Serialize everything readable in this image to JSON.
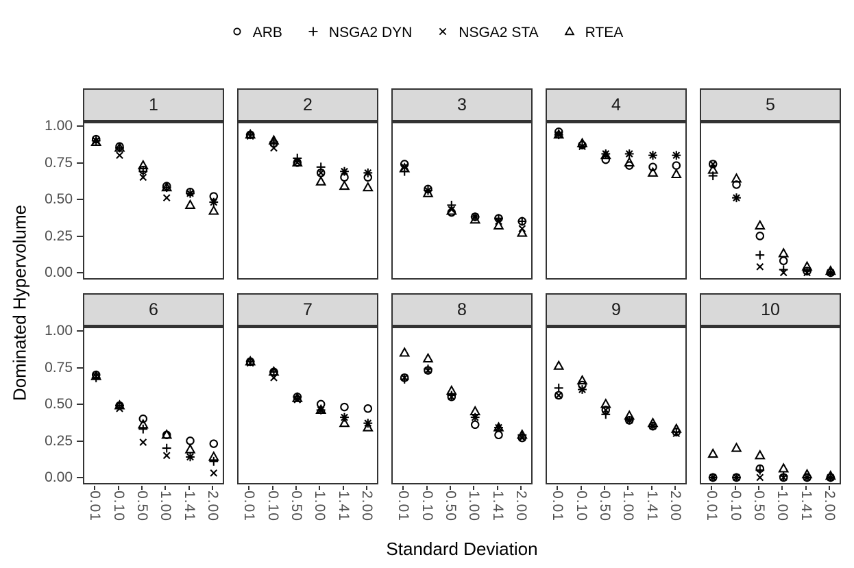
{
  "legend": {
    "items": [
      {
        "label": "ARB",
        "marker": "circle-icon"
      },
      {
        "label": "NSGA2 DYN",
        "marker": "plus-icon"
      },
      {
        "label": "NSGA2 STA",
        "marker": "x-icon"
      },
      {
        "label": "RTEA",
        "marker": "triangle-icon"
      }
    ]
  },
  "colors": {
    "marker": "#000000",
    "panel_border": "#333333",
    "strip_background": "#d9d9d9",
    "tick_label": "#4d4d4d",
    "axis_title": "#000000"
  },
  "chart_data": {
    "type": "scatter",
    "title": "",
    "xlabel": "Standard Deviation",
    "ylabel": "Dominated Hypervolume",
    "legend_position": "top",
    "grid": false,
    "categories": [
      "0.01",
      "0.10",
      "0.50",
      "1.00",
      "1.41",
      "2.00"
    ],
    "y_ticks": [
      {
        "label": "1.00",
        "value": 1.0
      },
      {
        "label": "0.75",
        "value": 0.75
      },
      {
        "label": "0.50",
        "value": 0.5
      },
      {
        "label": "0.25",
        "value": 0.25
      },
      {
        "label": "0.00",
        "value": 0.0
      }
    ],
    "ylim": [
      -0.03,
      1.03
    ],
    "series_names": [
      "ARB",
      "NSGA2 DYN",
      "NSGA2 STA",
      "RTEA"
    ],
    "facets": [
      {
        "label": "1",
        "series": [
          {
            "name": "ARB",
            "values": [
              0.92,
              0.87,
              0.71,
              0.6,
              0.56,
              0.53
            ]
          },
          {
            "name": "NSGA2 DYN",
            "values": [
              0.91,
              0.86,
              0.7,
              0.59,
              0.55,
              0.49
            ]
          },
          {
            "name": "NSGA2 STA",
            "values": [
              0.91,
              0.81,
              0.66,
              0.52,
              0.55,
              0.49
            ]
          },
          {
            "name": "RTEA",
            "values": [
              0.9,
              0.86,
              0.74,
              0.59,
              0.47,
              0.43
            ]
          }
        ]
      },
      {
        "label": "2",
        "series": [
          {
            "name": "ARB",
            "values": [
              0.95,
              0.89,
              0.76,
              0.69,
              0.66,
              0.66
            ]
          },
          {
            "name": "NSGA2 DYN",
            "values": [
              0.95,
              0.9,
              0.79,
              0.73,
              0.7,
              0.69
            ]
          },
          {
            "name": "NSGA2 STA",
            "values": [
              0.94,
              0.86,
              0.76,
              0.69,
              0.7,
              0.69
            ]
          },
          {
            "name": "RTEA",
            "values": [
              0.95,
              0.91,
              0.76,
              0.63,
              0.6,
              0.59
            ]
          }
        ]
      },
      {
        "label": "3",
        "series": [
          {
            "name": "ARB",
            "values": [
              0.75,
              0.58,
              0.42,
              0.39,
              0.38,
              0.36
            ]
          },
          {
            "name": "NSGA2 DYN",
            "values": [
              0.7,
              0.57,
              0.47,
              0.39,
              0.38,
              0.36
            ]
          },
          {
            "name": "NSGA2 STA",
            "values": [
              0.73,
              0.57,
              0.44,
              0.39,
              0.36,
              0.31
            ]
          },
          {
            "name": "RTEA",
            "values": [
              0.72,
              0.55,
              0.43,
              0.37,
              0.33,
              0.28
            ]
          }
        ]
      },
      {
        "label": "4",
        "series": [
          {
            "name": "ARB",
            "values": [
              0.97,
              0.88,
              0.78,
              0.74,
              0.73,
              0.74
            ]
          },
          {
            "name": "NSGA2 DYN",
            "values": [
              0.95,
              0.88,
              0.82,
              0.82,
              0.81,
              0.81
            ]
          },
          {
            "name": "NSGA2 STA",
            "values": [
              0.95,
              0.87,
              0.82,
              0.82,
              0.81,
              0.81
            ]
          },
          {
            "name": "RTEA",
            "values": [
              0.95,
              0.89,
              0.81,
              0.76,
              0.69,
              0.68
            ]
          }
        ]
      },
      {
        "label": "5",
        "series": [
          {
            "name": "ARB",
            "values": [
              0.75,
              0.61,
              0.26,
              0.09,
              0.02,
              0.01
            ]
          },
          {
            "name": "NSGA2 DYN",
            "values": [
              0.67,
              0.52,
              0.13,
              0.03,
              0.02,
              0.01
            ]
          },
          {
            "name": "NSGA2 STA",
            "values": [
              0.75,
              0.52,
              0.05,
              0.01,
              0.01,
              0.01
            ]
          },
          {
            "name": "RTEA",
            "values": [
              0.71,
              0.65,
              0.33,
              0.14,
              0.05,
              0.02
            ]
          }
        ]
      },
      {
        "label": "6",
        "series": [
          {
            "name": "ARB",
            "values": [
              0.71,
              0.5,
              0.41,
              0.3,
              0.26,
              0.24
            ]
          },
          {
            "name": "NSGA2 DYN",
            "values": [
              0.69,
              0.5,
              0.34,
              0.21,
              0.15,
              0.12
            ]
          },
          {
            "name": "NSGA2 STA",
            "values": [
              0.7,
              0.48,
              0.25,
              0.16,
              0.15,
              0.04
            ]
          },
          {
            "name": "RTEA",
            "values": [
              0.7,
              0.5,
              0.37,
              0.3,
              0.2,
              0.15
            ]
          }
        ]
      },
      {
        "label": "7",
        "series": [
          {
            "name": "ARB",
            "values": [
              0.8,
              0.73,
              0.56,
              0.51,
              0.49,
              0.48
            ]
          },
          {
            "name": "NSGA2 DYN",
            "values": [
              0.8,
              0.73,
              0.56,
              0.47,
              0.42,
              0.38
            ]
          },
          {
            "name": "NSGA2 STA",
            "values": [
              0.79,
              0.69,
              0.54,
              0.47,
              0.42,
              0.38
            ]
          },
          {
            "name": "RTEA",
            "values": [
              0.8,
              0.73,
              0.55,
              0.47,
              0.38,
              0.35
            ]
          }
        ]
      },
      {
        "label": "8",
        "series": [
          {
            "name": "ARB",
            "values": [
              0.69,
              0.74,
              0.56,
              0.37,
              0.3,
              0.28
            ]
          },
          {
            "name": "NSGA2 DYN",
            "values": [
              0.68,
              0.75,
              0.57,
              0.42,
              0.35,
              0.3
            ]
          },
          {
            "name": "NSGA2 STA",
            "values": [
              0.69,
              0.74,
              0.56,
              0.42,
              0.35,
              0.28
            ]
          },
          {
            "name": "RTEA",
            "values": [
              0.86,
              0.82,
              0.6,
              0.46,
              0.35,
              0.3
            ]
          }
        ]
      },
      {
        "label": "9",
        "series": [
          {
            "name": "ARB",
            "values": [
              0.57,
              0.64,
              0.47,
              0.4,
              0.36,
              0.32
            ]
          },
          {
            "name": "NSGA2 DYN",
            "values": [
              0.62,
              0.61,
              0.44,
              0.4,
              0.36,
              0.32
            ]
          },
          {
            "name": "NSGA2 STA",
            "values": [
              0.57,
              0.61,
              0.47,
              0.4,
              0.36,
              0.31
            ]
          },
          {
            "name": "RTEA",
            "values": [
              0.77,
              0.67,
              0.51,
              0.43,
              0.38,
              0.34
            ]
          }
        ]
      },
      {
        "label": "10",
        "series": [
          {
            "name": "ARB",
            "values": [
              0.01,
              0.01,
              0.07,
              0.01,
              0.01,
              0.01
            ]
          },
          {
            "name": "NSGA2 DYN",
            "values": [
              0.01,
              0.01,
              0.06,
              0.02,
              0.01,
              0.01
            ]
          },
          {
            "name": "NSGA2 STA",
            "values": [
              0.01,
              0.01,
              0.01,
              0.01,
              0.01,
              0.01
            ]
          },
          {
            "name": "RTEA",
            "values": [
              0.17,
              0.21,
              0.16,
              0.07,
              0.03,
              0.02
            ]
          }
        ]
      }
    ]
  }
}
